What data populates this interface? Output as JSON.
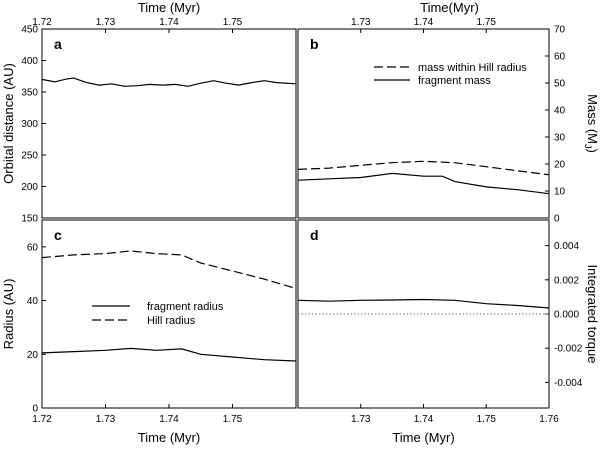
{
  "chart_data": [
    {
      "panel": "a",
      "type": "line",
      "panel_label": "a",
      "top_xlabel": "Time (Myr)",
      "top_xticks": [
        1.72,
        1.73,
        1.74,
        1.75
      ],
      "top_xtick_labels": [
        "1.72",
        "1.73",
        "1.74",
        "1.75"
      ],
      "xlim": [
        1.72,
        1.76
      ],
      "ylabel": "Orbital distance (AU)",
      "ylim": [
        150,
        450
      ],
      "yticks": [
        150,
        200,
        250,
        300,
        350,
        400,
        450
      ],
      "ytick_labels": [
        "150",
        "200",
        "250",
        "300",
        "350",
        "400",
        "450"
      ],
      "series": [
        {
          "style": "solid",
          "x": [
            1.72,
            1.722,
            1.724,
            1.725,
            1.727,
            1.729,
            1.731,
            1.733,
            1.735,
            1.737,
            1.739,
            1.741,
            1.743,
            1.745,
            1.747,
            1.749,
            1.751,
            1.753,
            1.755,
            1.757,
            1.76
          ],
          "y": [
            370,
            366,
            371,
            372,
            365,
            361,
            363,
            359,
            360,
            362,
            361,
            362,
            359,
            364,
            368,
            364,
            361,
            365,
            368,
            365,
            363
          ]
        }
      ]
    },
    {
      "panel": "b",
      "type": "line",
      "panel_label": "b",
      "top_xlabel": "Time(Myr)",
      "top_xticks": [
        1.73,
        1.74,
        1.75
      ],
      "top_xtick_labels": [
        "1.73",
        "1.74",
        "1.75"
      ],
      "xlim": [
        1.72,
        1.76
      ],
      "ylabel": "Mass (M",
      "ylabel_sub": "J",
      "ylabel_end": ")",
      "ylim": [
        0,
        70
      ],
      "yticks": [
        0,
        10,
        20,
        30,
        40,
        50,
        60,
        70
      ],
      "ytick_labels": [
        "0",
        "10",
        "20",
        "30",
        "40",
        "50",
        "60",
        "70"
      ],
      "legend": [
        {
          "label": "mass within Hill radius",
          "style": "dashed"
        },
        {
          "label": "fragment mass",
          "style": "solid"
        }
      ],
      "series": [
        {
          "name": "mass within Hill radius",
          "style": "dashed",
          "x": [
            1.72,
            1.725,
            1.73,
            1.735,
            1.74,
            1.745,
            1.75,
            1.755,
            1.76
          ],
          "y": [
            18,
            18.5,
            19.5,
            20.5,
            21,
            20.5,
            19,
            17.5,
            16
          ]
        },
        {
          "name": "fragment mass",
          "style": "solid",
          "x": [
            1.72,
            1.725,
            1.73,
            1.735,
            1.74,
            1.743,
            1.745,
            1.75,
            1.755,
            1.76
          ],
          "y": [
            14,
            14.5,
            15,
            16.5,
            15.5,
            15.5,
            13.5,
            11.5,
            10.5,
            9
          ]
        }
      ]
    },
    {
      "panel": "c",
      "type": "line",
      "panel_label": "c",
      "xlabel": "Time (Myr)",
      "xlim": [
        1.72,
        1.76
      ],
      "xticks": [
        1.72,
        1.73,
        1.74,
        1.75
      ],
      "xtick_labels": [
        "1.72",
        "1.73",
        "1.74",
        "1.75"
      ],
      "ylabel": "Radius (AU)",
      "ylim": [
        0,
        70
      ],
      "yticks": [
        0,
        20,
        40,
        60
      ],
      "ytick_labels": [
        "0",
        "20",
        "40",
        "60"
      ],
      "legend": [
        {
          "label": "fragment radius",
          "style": "solid"
        },
        {
          "label": "Hill radius",
          "style": "dashed"
        }
      ],
      "series": [
        {
          "name": "fragment radius",
          "style": "solid",
          "x": [
            1.72,
            1.725,
            1.73,
            1.734,
            1.738,
            1.742,
            1.745,
            1.75,
            1.755,
            1.76
          ],
          "y": [
            20.5,
            21,
            21.5,
            22.2,
            21.5,
            22,
            20,
            19,
            18,
            17.5
          ]
        },
        {
          "name": "Hill radius",
          "style": "dashed",
          "x": [
            1.72,
            1.725,
            1.73,
            1.734,
            1.738,
            1.742,
            1.745,
            1.75,
            1.755,
            1.76
          ],
          "y": [
            56,
            57,
            57.5,
            58.5,
            57.5,
            57,
            54,
            51,
            48,
            44.5
          ]
        }
      ]
    },
    {
      "panel": "d",
      "type": "line",
      "panel_label": "d",
      "xlabel": "Time (Myr)",
      "xlim": [
        1.72,
        1.76
      ],
      "xticks": [
        1.73,
        1.74,
        1.75,
        1.76
      ],
      "xtick_labels": [
        "1.73",
        "1.74",
        "1.75",
        "1.76"
      ],
      "ylabel": "Integrated torque",
      "ylim": [
        -0.0055,
        0.0055
      ],
      "yticks": [
        0.004,
        0.002,
        0.0,
        -0.002,
        -0.004
      ],
      "ytick_labels": [
        "0.004",
        "0.002",
        "0.000",
        "-0.002",
        "-0.004"
      ],
      "reference_line": {
        "y": 0.0,
        "style": "dotted"
      },
      "series": [
        {
          "style": "solid",
          "x": [
            1.72,
            1.725,
            1.73,
            1.735,
            1.74,
            1.745,
            1.75,
            1.755,
            1.76
          ],
          "y": [
            0.0008,
            0.00075,
            0.0008,
            0.00082,
            0.00085,
            0.0008,
            0.0006,
            0.0005,
            0.00035
          ]
        }
      ]
    }
  ]
}
